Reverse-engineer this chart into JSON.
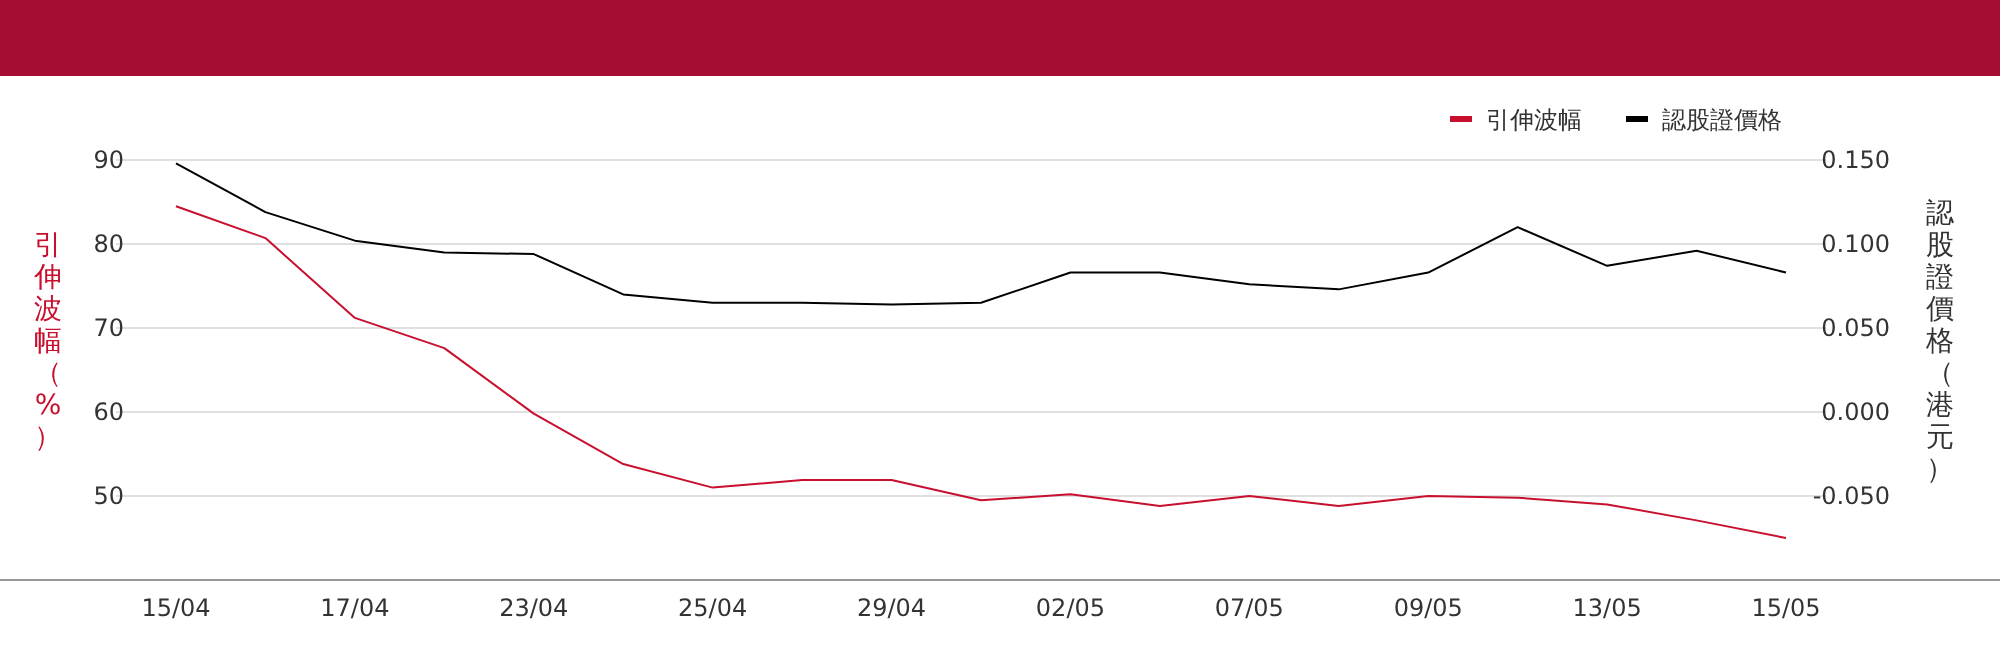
{
  "chart_data": {
    "type": "line",
    "categories": [
      "15/04",
      null,
      "17/04",
      null,
      "23/04",
      null,
      "25/04",
      null,
      "29/04",
      null,
      "02/05",
      null,
      "07/05",
      null,
      "09/05",
      null,
      "13/05",
      null,
      "15/05"
    ],
    "series": [
      {
        "name": "引伸波幅",
        "color": "#c8102e",
        "values": [
          84.5,
          80.7,
          71.2,
          67.6,
          59.8,
          53.8,
          51.0,
          51.9,
          51.9,
          49.5,
          50.2,
          48.8,
          50.0,
          48.8,
          50.0,
          49.8,
          49.0,
          47.1,
          45.0
        ]
      },
      {
        "name": "認股證價格",
        "color": "#000000",
        "axis": "y2",
        "values": [
          0.148,
          0.119,
          0.102,
          0.095,
          0.094,
          0.07,
          0.065,
          0.065,
          0.064,
          0.065,
          0.083,
          0.083,
          0.076,
          0.073,
          0.083,
          0.11,
          0.087,
          0.096,
          0.083
        ]
      }
    ],
    "ylabel": "引伸波幅（%）",
    "y2label": "認股證價格（港元）",
    "ylim": [
      40,
      90
    ],
    "yticks": [
      50,
      60,
      70,
      80,
      90
    ],
    "y2lim": [
      -0.1,
      0.15
    ],
    "y2ticks": [
      {
        "value": -0.05,
        "label": "-0.050"
      },
      {
        "value": 0,
        "label": "0.000"
      },
      {
        "value": 0.05,
        "label": "0.050"
      },
      {
        "value": 0.1,
        "label": "0.100"
      },
      {
        "value": 0.15,
        "label": "0.150"
      }
    ],
    "grid": "y",
    "legend": "top right"
  }
}
